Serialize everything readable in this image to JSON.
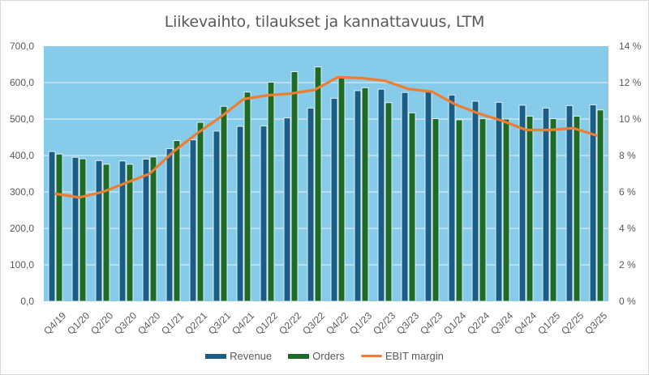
{
  "chart_data": {
    "type": "bar+line",
    "title": "Liikevaihto, tilaukset ja kannattavuus, LTM",
    "categories": [
      "Q4/19",
      "Q1/20",
      "Q2/20",
      "Q3/20",
      "Q4/20",
      "Q1/21",
      "Q2/21",
      "Q3/21",
      "Q4/21",
      "Q1/22",
      "Q2/22",
      "Q3/22",
      "Q4/22",
      "Q1/23",
      "Q2/23",
      "Q3/23",
      "Q4/23",
      "Q1/24",
      "Q2/24",
      "Q3/24",
      "Q4/24",
      "Q1/25",
      "Q2/25",
      "Q3/25"
    ],
    "series": [
      {
        "name": "Revenue",
        "type": "bar",
        "axis": "left",
        "color": "#1a5e86",
        "values": [
          411,
          395,
          386,
          385,
          390,
          419,
          443,
          467,
          480,
          481,
          503,
          530,
          557,
          578,
          582,
          573,
          575,
          566,
          549,
          546,
          538,
          530,
          537,
          539
        ]
      },
      {
        "name": "Orders",
        "type": "bar",
        "axis": "left",
        "color": "#1d6b26",
        "values": [
          404,
          391,
          376,
          376,
          396,
          441,
          491,
          535,
          574,
          601,
          630,
          643,
          613,
          586,
          545,
          517,
          501,
          498,
          501,
          500,
          508,
          501,
          508,
          525
        ]
      },
      {
        "name": "EBIT margin",
        "type": "line",
        "axis": "right",
        "color": "#ed7d31",
        "values": [
          5.9,
          5.7,
          6.0,
          6.5,
          7.0,
          8.2,
          9.2,
          10.1,
          11.1,
          11.3,
          11.4,
          11.6,
          12.3,
          12.25,
          12.1,
          11.65,
          11.5,
          10.8,
          10.3,
          9.9,
          9.4,
          9.4,
          9.5,
          9.1
        ]
      }
    ],
    "y_left": {
      "min": 0,
      "max": 700,
      "step": 100,
      "tick_labels": [
        "0,0",
        "100,0",
        "200,0",
        "300,0",
        "400,0",
        "500,0",
        "600,0",
        "700,0"
      ]
    },
    "y_right": {
      "min": 0,
      "max": 14,
      "step": 2,
      "tick_labels": [
        "0 %",
        "2 %",
        "4 %",
        "6 %",
        "8 %",
        "10 %",
        "12 %",
        "14 %"
      ]
    },
    "xlabel": "",
    "ylabel": "",
    "grid": true,
    "plot_background": "#86cbea",
    "legend_position": "bottom"
  },
  "legend": [
    {
      "label": "Revenue",
      "color": "#1a5e86",
      "kind": "bar"
    },
    {
      "label": "Orders",
      "color": "#1d6b26",
      "kind": "bar"
    },
    {
      "label": "EBIT margin",
      "color": "#ed7d31",
      "kind": "line"
    }
  ]
}
